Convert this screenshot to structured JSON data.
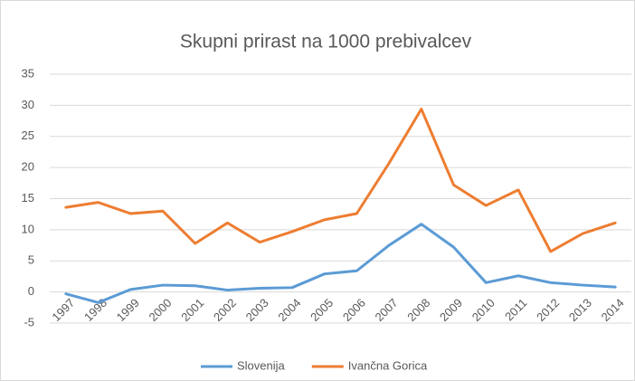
{
  "chart_data": {
    "type": "line",
    "title": "Skupni prirast na 1000 prebivalcev",
    "categories": [
      "1997",
      "1998",
      "1999",
      "2000",
      "2001",
      "2002",
      "2003",
      "2004",
      "2005",
      "2006",
      "2007",
      "2008",
      "2009",
      "2010",
      "2011",
      "2012",
      "2013",
      "2014"
    ],
    "series": [
      {
        "name": "Slovenija",
        "color": "#5b9bd5",
        "values": [
          -0.3,
          -1.7,
          0.4,
          1.1,
          1.0,
          0.3,
          0.6,
          0.7,
          2.9,
          3.4,
          7.5,
          10.9,
          7.2,
          1.5,
          2.6,
          1.5,
          1.1,
          0.8
        ]
      },
      {
        "name": "Ivančna Gorica",
        "color": "#ed7d31",
        "values": [
          13.6,
          14.4,
          12.6,
          13.0,
          7.8,
          11.1,
          8.0,
          9.7,
          11.6,
          12.6,
          20.7,
          29.4,
          17.2,
          13.9,
          16.4,
          6.5,
          9.4,
          11.1
        ]
      }
    ],
    "ylim": [
      -5,
      35
    ],
    "yticks": [
      -5,
      0,
      5,
      10,
      15,
      20,
      25,
      30,
      35
    ],
    "grid": true,
    "legend": "bottom"
  }
}
